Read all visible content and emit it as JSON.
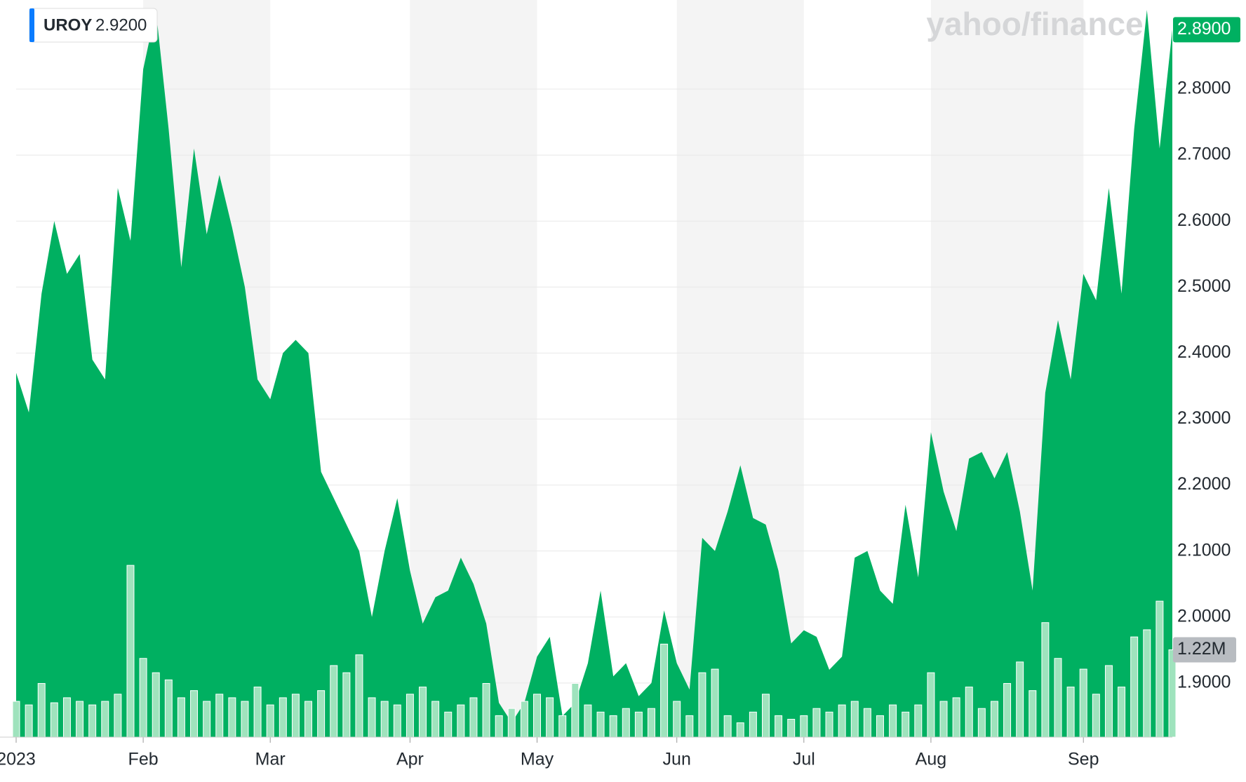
{
  "chart_data": {
    "type": "area",
    "watermark": "yahoo/finance",
    "tooltip": {
      "symbol": "UROY",
      "value": "2.9200"
    },
    "categories": [
      "2023",
      null,
      null,
      null,
      null,
      null,
      null,
      null,
      null,
      null,
      "Feb",
      null,
      null,
      null,
      null,
      null,
      null,
      null,
      null,
      null,
      "Mar",
      null,
      null,
      null,
      null,
      null,
      null,
      null,
      null,
      null,
      null,
      "Apr",
      null,
      null,
      null,
      null,
      null,
      null,
      null,
      null,
      null,
      "May",
      null,
      null,
      null,
      null,
      null,
      null,
      null,
      null,
      null,
      null,
      "Jun",
      null,
      null,
      null,
      null,
      null,
      null,
      null,
      null,
      null,
      "Jul",
      null,
      null,
      null,
      null,
      null,
      null,
      null,
      null,
      null,
      "Aug",
      null,
      null,
      null,
      null,
      null,
      null,
      null,
      null,
      null,
      null,
      null,
      "Sep",
      null,
      null,
      null,
      null,
      null,
      null,
      null
    ],
    "series": [
      {
        "name": "UROY",
        "color": "#00b061",
        "last_value_label": "2.8900",
        "values": [
          2.37,
          2.31,
          2.49,
          2.6,
          2.52,
          2.55,
          2.39,
          2.36,
          2.65,
          2.57,
          2.83,
          2.92,
          2.74,
          2.53,
          2.71,
          2.58,
          2.67,
          2.59,
          2.5,
          2.36,
          2.33,
          2.4,
          2.42,
          2.4,
          2.22,
          2.18,
          2.14,
          2.1,
          2.0,
          2.1,
          2.18,
          2.07,
          1.99,
          2.03,
          2.04,
          2.09,
          2.05,
          1.99,
          1.87,
          1.84,
          1.87,
          1.94,
          1.97,
          1.85,
          1.87,
          1.93,
          2.04,
          1.91,
          1.93,
          1.88,
          1.9,
          2.01,
          1.93,
          1.89,
          2.12,
          2.1,
          2.16,
          2.23,
          2.15,
          2.14,
          2.07,
          1.96,
          1.98,
          1.97,
          1.92,
          1.94,
          2.09,
          2.1,
          2.04,
          2.02,
          2.17,
          2.06,
          2.28,
          2.19,
          2.13,
          2.24,
          2.25,
          2.21,
          2.25,
          2.16,
          2.04,
          2.34,
          2.45,
          2.36,
          2.52,
          2.48,
          2.65,
          2.49,
          2.74,
          2.92,
          2.71,
          2.89
        ]
      },
      {
        "name": "Volume",
        "color": "#9fe3bd",
        "axis": "y2",
        "last_value_label": "1.22M",
        "values": [
          0.5,
          0.45,
          0.75,
          0.48,
          0.55,
          0.5,
          0.45,
          0.5,
          0.6,
          2.4,
          1.1,
          0.9,
          0.8,
          0.55,
          0.65,
          0.5,
          0.6,
          0.55,
          0.5,
          0.7,
          0.45,
          0.55,
          0.6,
          0.5,
          0.65,
          1.0,
          0.9,
          1.15,
          0.55,
          0.5,
          0.45,
          0.6,
          0.7,
          0.5,
          0.35,
          0.45,
          0.55,
          0.75,
          0.3,
          0.4,
          0.5,
          0.6,
          0.55,
          0.3,
          0.75,
          0.45,
          0.35,
          0.3,
          0.4,
          0.35,
          0.4,
          1.3,
          0.5,
          0.3,
          0.9,
          0.95,
          0.3,
          0.2,
          0.35,
          0.6,
          0.3,
          0.25,
          0.3,
          0.4,
          0.35,
          0.45,
          0.5,
          0.4,
          0.3,
          0.45,
          0.35,
          0.45,
          0.9,
          0.5,
          0.55,
          0.7,
          0.4,
          0.5,
          0.75,
          1.05,
          0.65,
          1.6,
          1.1,
          0.7,
          0.95,
          0.6,
          1.0,
          0.7,
          1.4,
          1.5,
          1.9,
          1.22
        ]
      }
    ],
    "ylim": [
      1.818,
      2.935
    ],
    "yticks": [
      {
        "value": 1.9,
        "label": "1.9000"
      },
      {
        "value": 2.0,
        "label": "2.0000"
      },
      {
        "value": 2.1,
        "label": "2.1000"
      },
      {
        "value": 2.2,
        "label": "2.2000"
      },
      {
        "value": 2.3,
        "label": "2.3000"
      },
      {
        "value": 2.4,
        "label": "2.4000"
      },
      {
        "value": 2.5,
        "label": "2.5000"
      },
      {
        "value": 2.6,
        "label": "2.6000"
      },
      {
        "value": 2.7,
        "label": "2.7000"
      },
      {
        "value": 2.8,
        "label": "2.8000"
      }
    ],
    "y2lim": [
      0,
      10.3
    ],
    "grid": true
  }
}
